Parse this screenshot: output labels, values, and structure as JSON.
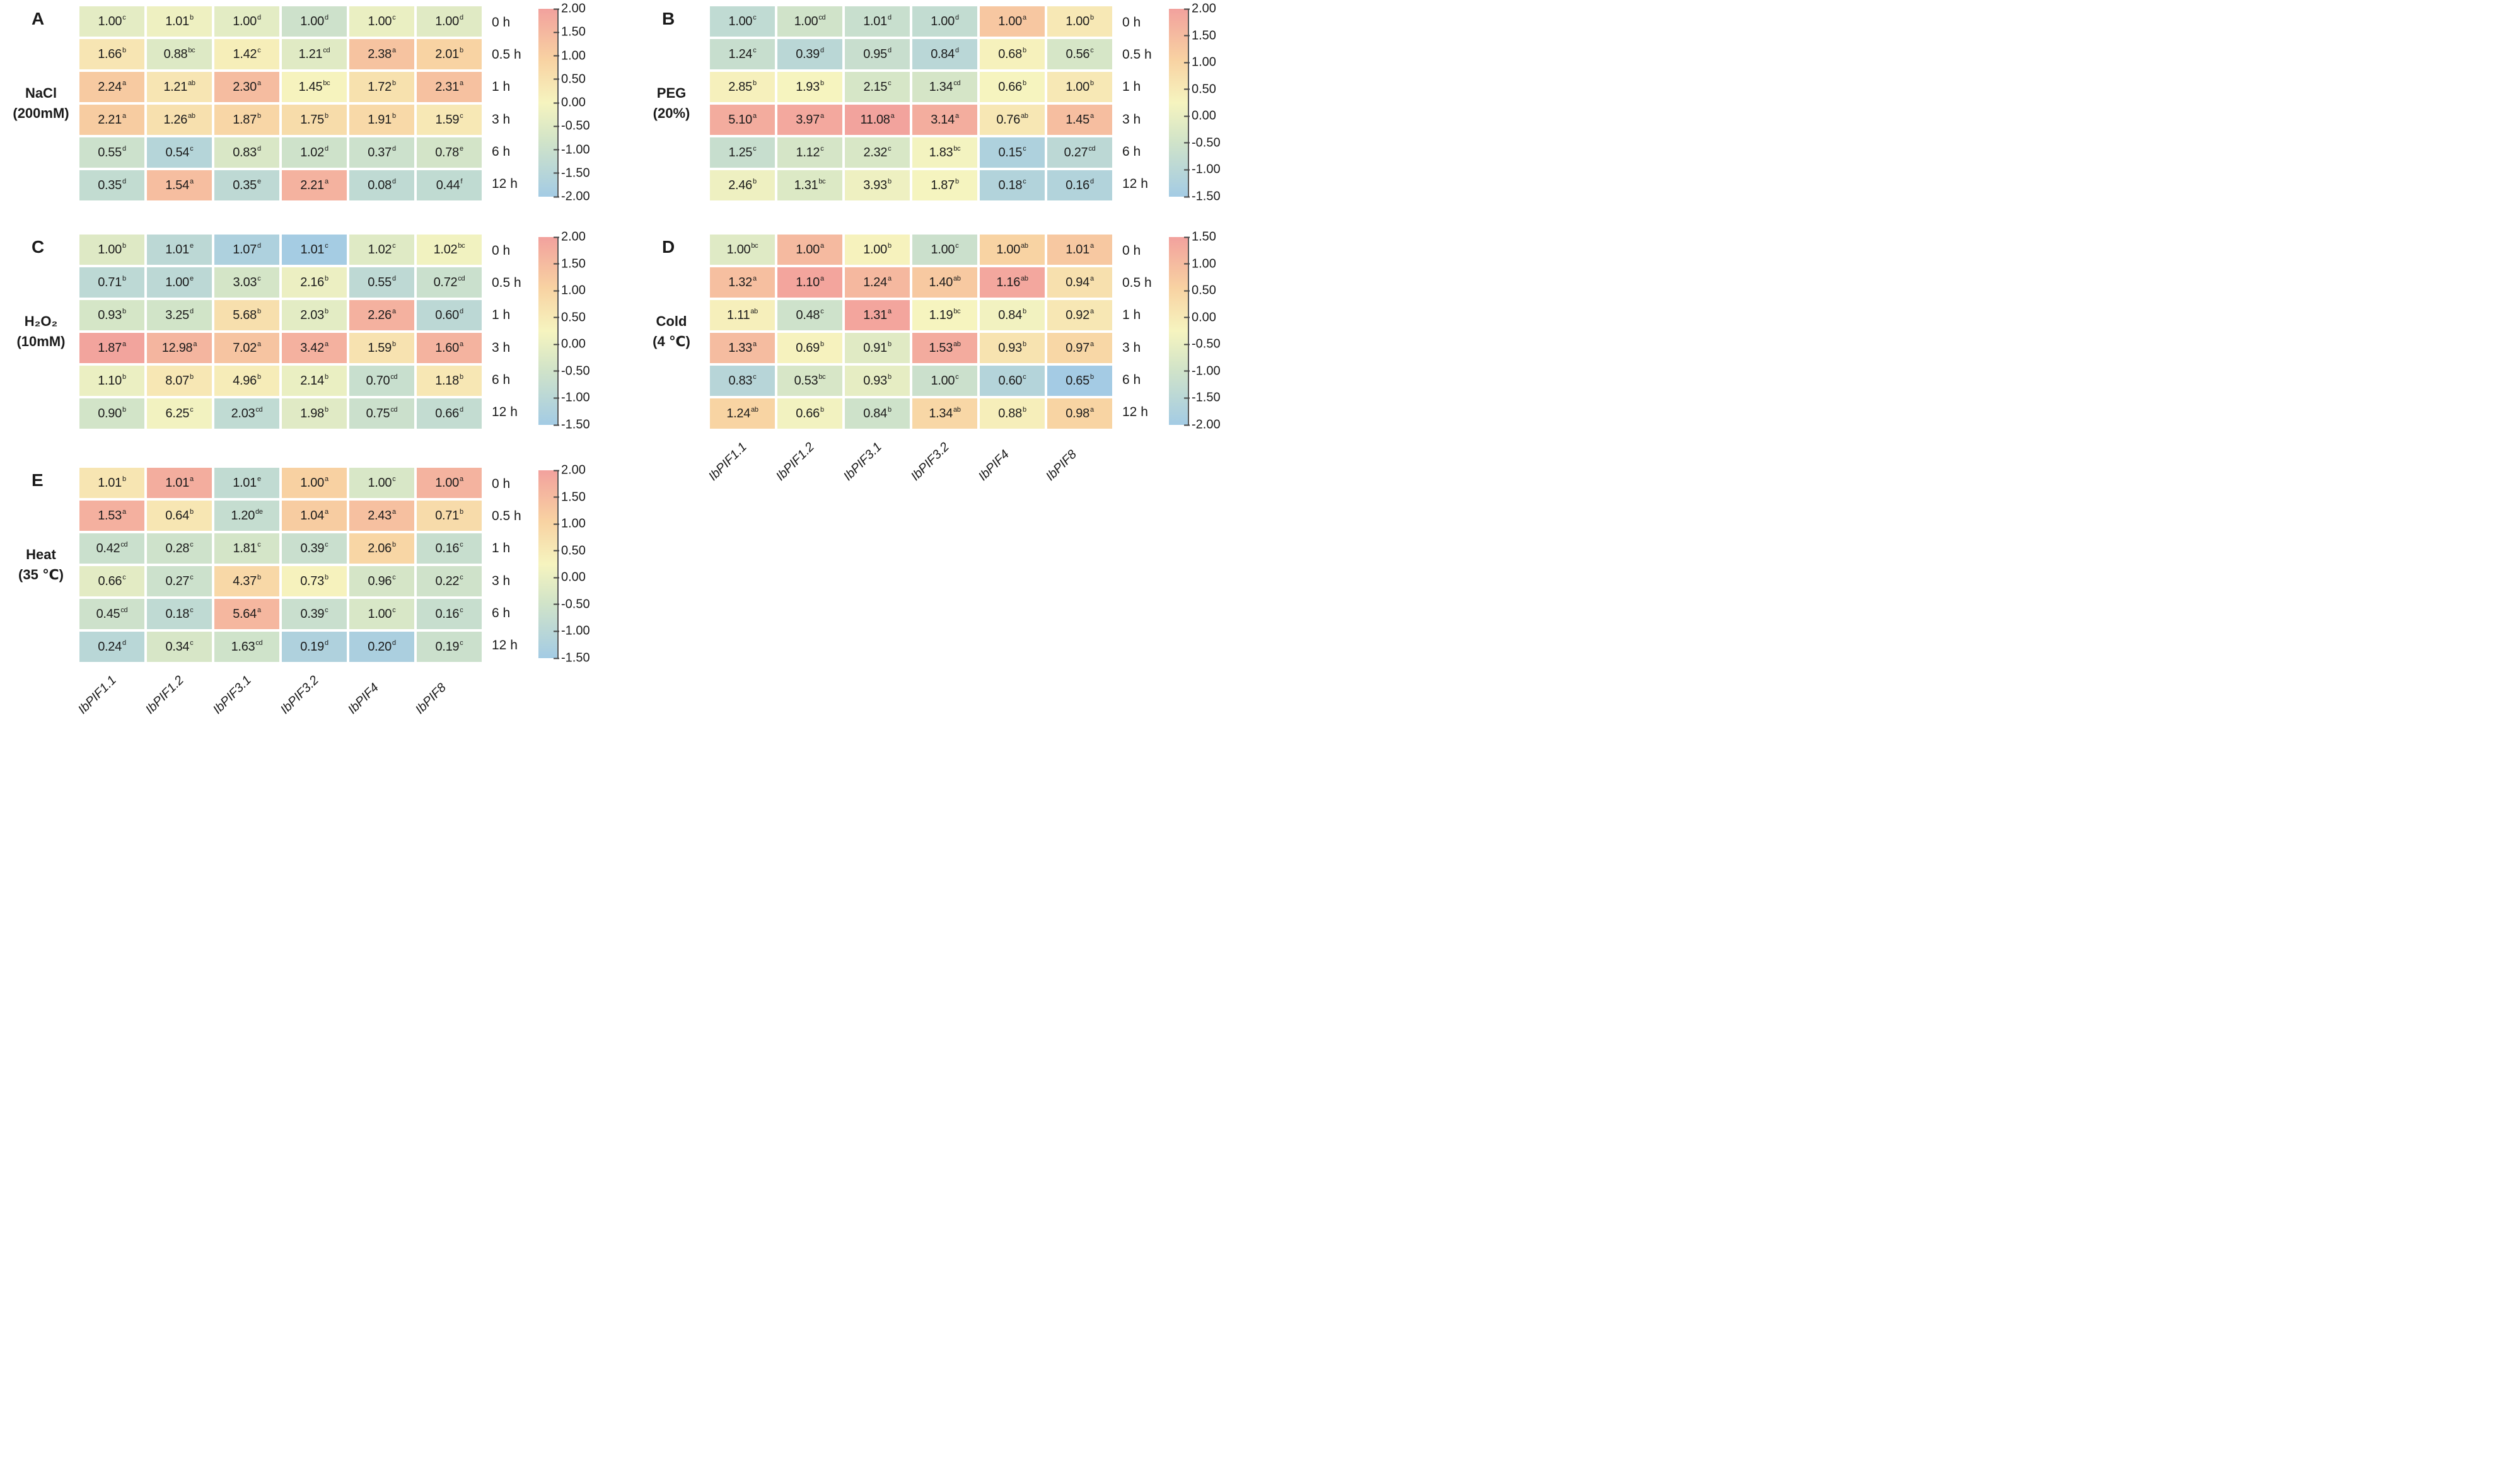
{
  "figure": {
    "background": "#ffffff",
    "text_color": "#1a1a1a",
    "tick_color": "#444444",
    "colormap_stops": [
      {
        "t": 0,
        "c": "#a3cbe4"
      },
      {
        "t": 0.3,
        "c": "#d2e4c8"
      },
      {
        "t": 0.5,
        "c": "#f6f4bf"
      },
      {
        "t": 0.73,
        "c": "#f8d2a2"
      },
      {
        "t": 1,
        "c": "#f2a19d"
      }
    ]
  },
  "chart_data": [
    {
      "type": "heatmap",
      "panel_label": "A",
      "condition_line1": "NaCl",
      "condition_line2": "(200mM)",
      "columns": [
        "IbPIF1.1",
        "IbPIF1.2",
        "IbPIF3.1",
        "IbPIF3.2",
        "IbPIF4",
        "IbPIF8"
      ],
      "rows": [
        "0 h",
        "0.5 h",
        "1 h",
        "3 h",
        "6 h",
        "12 h"
      ],
      "values": [
        [
          1.0,
          1.01,
          1.0,
          1.0,
          1.0,
          1.0
        ],
        [
          1.66,
          0.88,
          1.42,
          1.21,
          2.38,
          2.01
        ],
        [
          2.24,
          1.21,
          2.3,
          1.45,
          1.72,
          2.31
        ],
        [
          2.21,
          1.26,
          1.87,
          1.75,
          1.91,
          1.59
        ],
        [
          0.55,
          0.54,
          0.83,
          1.02,
          0.37,
          0.78
        ],
        [
          0.35,
          1.54,
          0.35,
          2.21,
          0.08,
          0.44
        ]
      ],
      "sig_letters": [
        [
          "c",
          "b",
          "d",
          "d",
          "c",
          "d"
        ],
        [
          "b",
          "bc",
          "c",
          "cd",
          "a",
          "b"
        ],
        [
          "a",
          "ab",
          "a",
          "bc",
          "b",
          "a"
        ],
        [
          "a",
          "ab",
          "b",
          "b",
          "b",
          "c"
        ],
        [
          "d",
          "c",
          "d",
          "d",
          "d",
          "e"
        ],
        [
          "d",
          "a",
          "e",
          "a",
          "d",
          "f"
        ]
      ],
      "colorbar_ticks": [
        2.0,
        1.5,
        1.0,
        0.5,
        0.0,
        -0.5,
        -1.0,
        -1.5,
        -2.0
      ],
      "color_scaling": "column z-score"
    },
    {
      "type": "heatmap",
      "panel_label": "B",
      "condition_line1": "PEG",
      "condition_line2": "(20%)",
      "columns": [
        "IbPIF1.1",
        "IbPIF1.2",
        "IbPIF3.1",
        "IbPIF3.2",
        "IbPIF4",
        "IbPIF8"
      ],
      "rows": [
        "0 h",
        "0.5 h",
        "1 h",
        "3 h",
        "6 h",
        "12 h"
      ],
      "values": [
        [
          1.0,
          1.0,
          1.01,
          1.0,
          1.0,
          1.0
        ],
        [
          1.24,
          0.39,
          0.95,
          0.84,
          0.68,
          0.56
        ],
        [
          2.85,
          1.93,
          2.15,
          1.34,
          0.66,
          1.0
        ],
        [
          5.1,
          3.97,
          11.08,
          3.14,
          0.76,
          1.45
        ],
        [
          1.25,
          1.12,
          2.32,
          1.83,
          0.15,
          0.27
        ],
        [
          2.46,
          1.31,
          3.93,
          1.87,
          0.18,
          0.16
        ]
      ],
      "sig_letters": [
        [
          "c",
          "cd",
          "d",
          "d",
          "a",
          "b"
        ],
        [
          "c",
          "d",
          "d",
          "d",
          "b",
          "c"
        ],
        [
          "b",
          "b",
          "c",
          "cd",
          "b",
          "b"
        ],
        [
          "a",
          "a",
          "a",
          "a",
          "ab",
          "a"
        ],
        [
          "c",
          "c",
          "c",
          "bc",
          "c",
          "cd"
        ],
        [
          "b",
          "bc",
          "b",
          "b",
          "c",
          "d"
        ]
      ],
      "colorbar_ticks": [
        2.0,
        1.5,
        1.0,
        0.5,
        0.0,
        -0.5,
        -1.0,
        -1.5
      ],
      "color_scaling": "column z-score"
    },
    {
      "type": "heatmap",
      "panel_label": "C",
      "condition_line1": "H₂O₂",
      "condition_line2": "(10mM)",
      "columns": [
        "IbPIF1.1",
        "IbPIF1.2",
        "IbPIF3.1",
        "IbPIF3.2",
        "IbPIF4",
        "IbPIF8"
      ],
      "rows": [
        "0 h",
        "0.5 h",
        "1 h",
        "3 h",
        "6 h",
        "12 h"
      ],
      "values": [
        [
          1.0,
          1.01,
          1.07,
          1.01,
          1.02,
          1.02
        ],
        [
          0.71,
          1.0,
          3.03,
          2.16,
          0.55,
          0.72
        ],
        [
          0.93,
          3.25,
          5.68,
          2.03,
          2.26,
          0.6
        ],
        [
          1.87,
          12.98,
          7.02,
          3.42,
          1.59,
          1.6
        ],
        [
          1.1,
          8.07,
          4.96,
          2.14,
          0.7,
          1.18
        ],
        [
          0.9,
          6.25,
          2.03,
          1.98,
          0.75,
          0.66
        ]
      ],
      "sig_letters": [
        [
          "b",
          "e",
          "d",
          "c",
          "c",
          "bc"
        ],
        [
          "b",
          "e",
          "c",
          "b",
          "d",
          "cd"
        ],
        [
          "b",
          "d",
          "b",
          "b",
          "a",
          "d"
        ],
        [
          "a",
          "a",
          "a",
          "a",
          "b",
          "a"
        ],
        [
          "b",
          "b",
          "b",
          "b",
          "cd",
          "b"
        ],
        [
          "b",
          "c",
          "cd",
          "b",
          "cd",
          "d"
        ]
      ],
      "colorbar_ticks": [
        2.0,
        1.5,
        1.0,
        0.5,
        0.0,
        -0.5,
        -1.0,
        -1.5
      ],
      "color_scaling": "column z-score"
    },
    {
      "type": "heatmap",
      "panel_label": "D",
      "condition_line1": "Cold",
      "condition_line2": "(4 ℃)",
      "columns": [
        "IbPIF1.1",
        "IbPIF1.2",
        "IbPIF3.1",
        "IbPIF3.2",
        "IbPIF4",
        "IbPIF8"
      ],
      "rows": [
        "0 h",
        "0.5 h",
        "1 h",
        "3 h",
        "6 h",
        "12 h"
      ],
      "values": [
        [
          1.0,
          1.0,
          1.0,
          1.0,
          1.0,
          1.01
        ],
        [
          1.32,
          1.1,
          1.24,
          1.4,
          1.16,
          0.94
        ],
        [
          1.11,
          0.48,
          1.31,
          1.19,
          0.84,
          0.92
        ],
        [
          1.33,
          0.69,
          0.91,
          1.53,
          0.93,
          0.97
        ],
        [
          0.83,
          0.53,
          0.93,
          1.0,
          0.6,
          0.65
        ],
        [
          1.24,
          0.66,
          0.84,
          1.34,
          0.88,
          0.98
        ]
      ],
      "sig_letters": [
        [
          "bc",
          "a",
          "b",
          "c",
          "ab",
          "a"
        ],
        [
          "a",
          "a",
          "a",
          "ab",
          "ab",
          "a"
        ],
        [
          "ab",
          "c",
          "a",
          "bc",
          "b",
          "a"
        ],
        [
          "a",
          "b",
          "b",
          "ab",
          "b",
          "a"
        ],
        [
          "c",
          "bc",
          "b",
          "c",
          "c",
          "b"
        ],
        [
          "ab",
          "b",
          "b",
          "ab",
          "b",
          "a"
        ]
      ],
      "colorbar_ticks": [
        1.5,
        1.0,
        0.5,
        0.0,
        -0.5,
        -1.0,
        -1.5,
        -2.0
      ],
      "color_scaling": "column z-score"
    },
    {
      "type": "heatmap",
      "panel_label": "E",
      "condition_line1": "Heat",
      "condition_line2": "(35 ℃)",
      "columns": [
        "IbPIF1.1",
        "IbPIF1.2",
        "IbPIF3.1",
        "IbPIF3.2",
        "IbPIF4",
        "IbPIF8"
      ],
      "rows": [
        "0 h",
        "0.5 h",
        "1 h",
        "3 h",
        "6 h",
        "12 h"
      ],
      "values": [
        [
          1.01,
          1.01,
          1.01,
          1.0,
          1.0,
          1.0
        ],
        [
          1.53,
          0.64,
          1.2,
          1.04,
          2.43,
          0.71
        ],
        [
          0.42,
          0.28,
          1.81,
          0.39,
          2.06,
          0.16
        ],
        [
          0.66,
          0.27,
          4.37,
          0.73,
          0.96,
          0.22
        ],
        [
          0.45,
          0.18,
          5.64,
          0.39,
          1.0,
          0.16
        ],
        [
          0.24,
          0.34,
          1.63,
          0.19,
          0.2,
          0.19
        ]
      ],
      "sig_letters": [
        [
          "b",
          "a",
          "e",
          "a",
          "c",
          "a"
        ],
        [
          "a",
          "b",
          "de",
          "a",
          "a",
          "b"
        ],
        [
          "cd",
          "c",
          "c",
          "c",
          "b",
          "c"
        ],
        [
          "c",
          "c",
          "b",
          "b",
          "c",
          "c"
        ],
        [
          "cd",
          "c",
          "a",
          "c",
          "c",
          "c"
        ],
        [
          "d",
          "c",
          "cd",
          "d",
          "d",
          "c"
        ]
      ],
      "colorbar_ticks": [
        2.0,
        1.5,
        1.0,
        0.5,
        0.0,
        -0.5,
        -1.0,
        -1.5
      ],
      "color_scaling": "column z-score"
    }
  ]
}
